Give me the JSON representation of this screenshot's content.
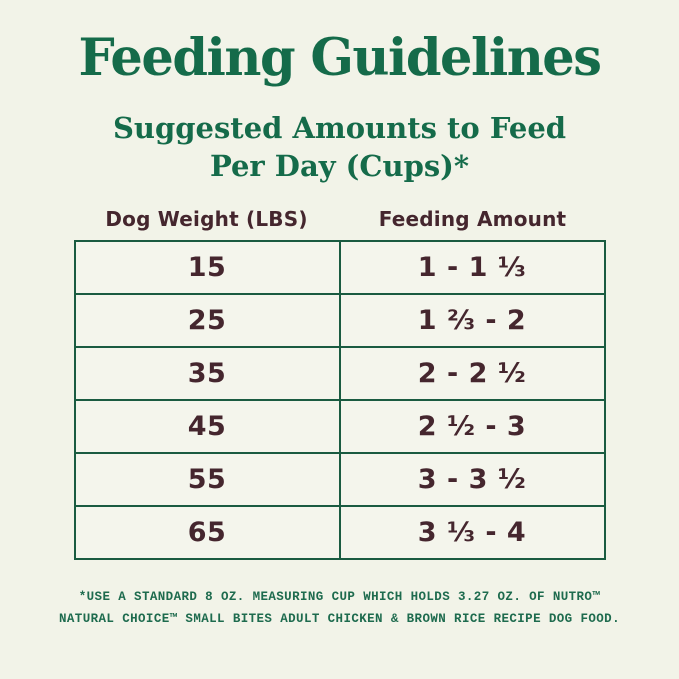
{
  "page": {
    "title": "Feeding Guidelines",
    "subtitle_line1": "Suggested Amounts to Feed",
    "subtitle_line2": "Per Day (Cups)*",
    "colors": {
      "background": "#F2F3E8",
      "heading_green": "#156B4A",
      "table_border_green": "#1A5B41",
      "cell_text_maroon": "#45262E",
      "footnote_green": "#1E6B4E"
    }
  },
  "table": {
    "columns": [
      "Dog Weight (LBS)",
      "Feeding Amount"
    ],
    "rows": [
      {
        "weight": "15",
        "amount": "1 - 1 ⅓"
      },
      {
        "weight": "25",
        "amount": "1 ⅔ - 2"
      },
      {
        "weight": "35",
        "amount": "2 - 2 ½"
      },
      {
        "weight": "45",
        "amount": "2 ½ - 3"
      },
      {
        "weight": "55",
        "amount": "3 - 3 ½"
      },
      {
        "weight": "65",
        "amount": "3 ⅓ - 4"
      }
    ]
  },
  "footnote": {
    "line1": "*USE A STANDARD 8 OZ. MEASURING CUP WHICH HOLDS 3.27 OZ. OF NUTRO™",
    "line2": "NATURAL CHOICE™ SMALL BITES ADULT CHICKEN & BROWN RICE RECIPE DOG FOOD."
  },
  "chart_data": {
    "type": "table",
    "title": "Feeding Guidelines",
    "subtitle": "Suggested Amounts to Feed Per Day (Cups)*",
    "columns": [
      "Dog Weight (LBS)",
      "Feeding Amount"
    ],
    "rows": [
      [
        "15",
        "1 - 1 ⅓"
      ],
      [
        "25",
        "1 ⅔ - 2"
      ],
      [
        "35",
        "2 - 2 ½"
      ],
      [
        "45",
        "2 ½ - 3"
      ],
      [
        "55",
        "3 - 3 ½"
      ],
      [
        "65",
        "3 ⅓ - 4"
      ]
    ],
    "footnote": "*USE A STANDARD 8 OZ. MEASURING CUP WHICH HOLDS 3.27 OZ. OF NUTRO™ NATURAL CHOICE™ SMALL BITES ADULT CHICKEN & BROWN RICE RECIPE DOG FOOD."
  }
}
